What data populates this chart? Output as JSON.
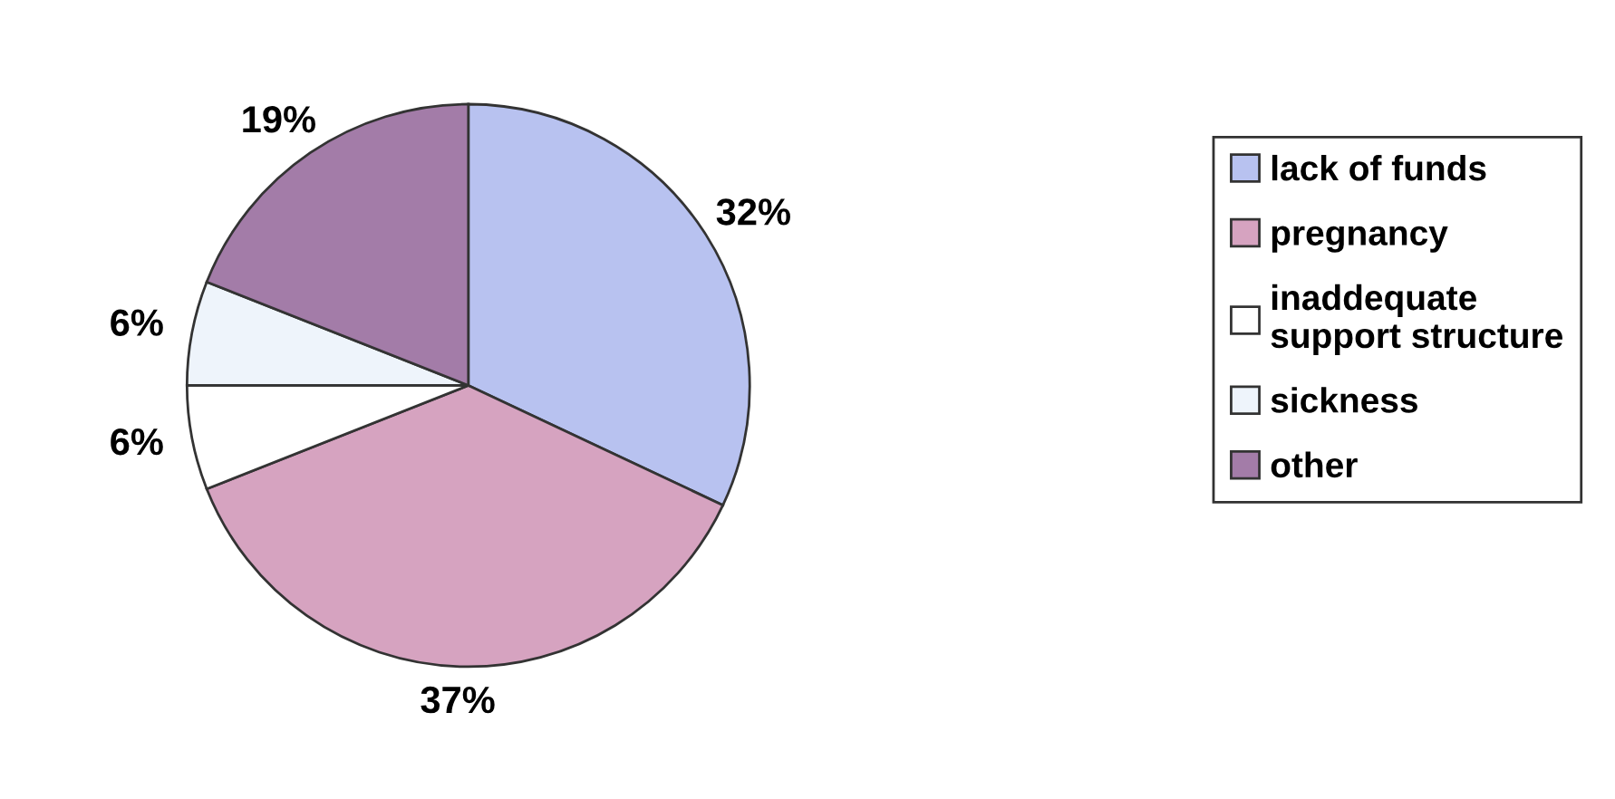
{
  "chart_data": {
    "type": "pie",
    "categories": [
      "lack of funds",
      "pregnancy",
      "inaddequate support structure",
      "sickness",
      "other"
    ],
    "values": [
      32,
      37,
      6,
      6,
      19
    ],
    "colors": [
      "#b8c2f0",
      "#d6a3c0",
      "#ffffff",
      "#eef4fb",
      "#a37ca8"
    ],
    "value_labels": [
      "32%",
      "37%",
      "6%",
      "6%",
      "19%"
    ],
    "legend": "right"
  }
}
